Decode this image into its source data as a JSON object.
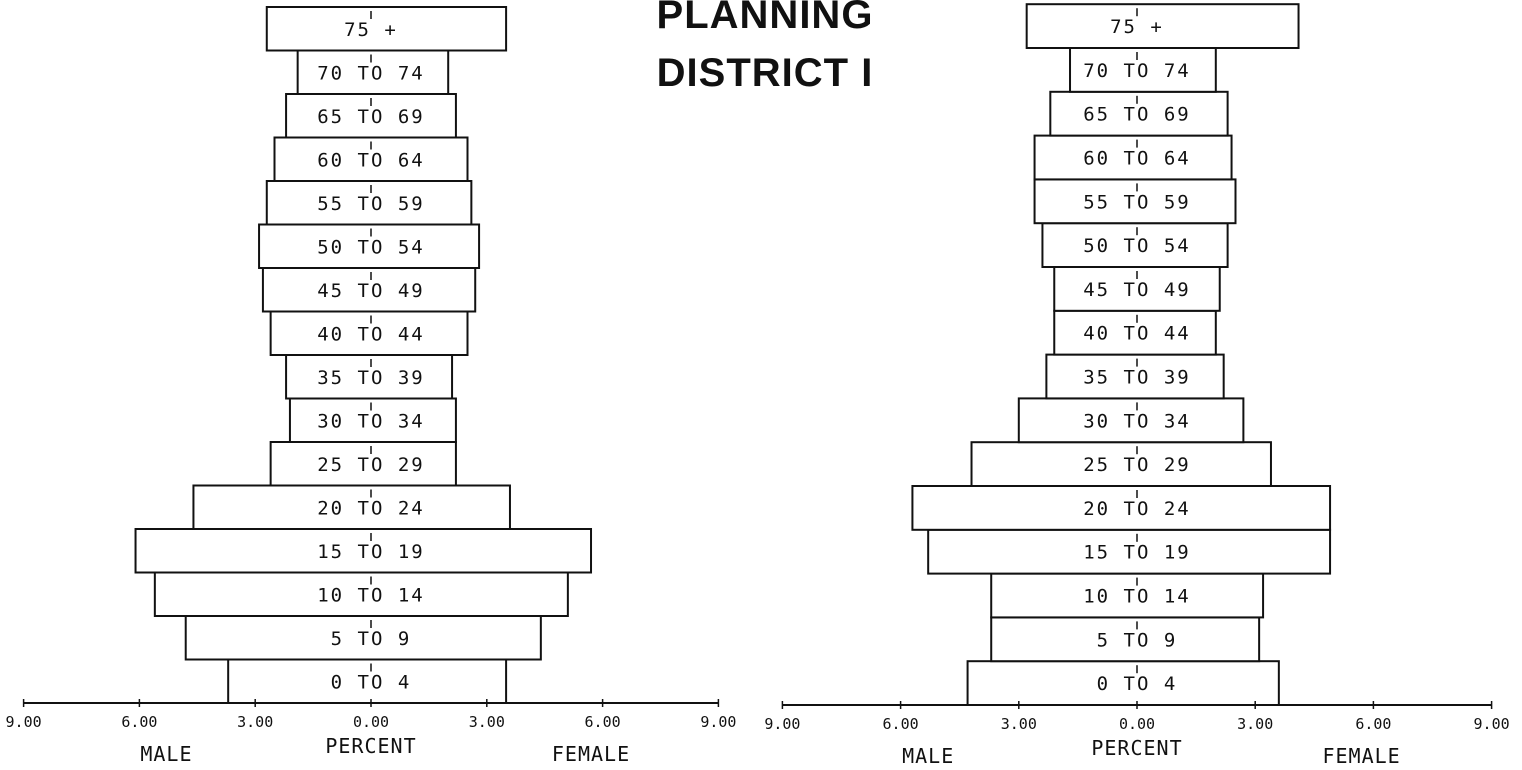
{
  "title": {
    "line1": "PLANNING",
    "line2": "DISTRICT I"
  },
  "colors": {
    "ink": "#111111",
    "background": "#ffffff"
  },
  "chart_data": [
    {
      "type": "bar",
      "orientation": "horizontal",
      "subtype": "population-pyramid",
      "categories": [
        "0 TO 4",
        "5 TO 9",
        "10 TO 14",
        "15 TO 19",
        "20 TO 24",
        "25 TO 29",
        "30 TO 34",
        "35 TO 39",
        "40 TO 44",
        "45 TO 49",
        "50 TO 54",
        "55 TO 59",
        "60 TO 64",
        "65 TO 69",
        "70 TO 74",
        "75 +"
      ],
      "series": [
        {
          "name": "MALE",
          "values": [
            3.7,
            4.8,
            5.6,
            6.1,
            4.6,
            2.6,
            2.1,
            2.2,
            2.6,
            2.8,
            2.9,
            2.7,
            2.5,
            2.2,
            1.9,
            2.7
          ]
        },
        {
          "name": "FEMALE",
          "values": [
            3.5,
            4.4,
            5.1,
            5.7,
            3.6,
            2.2,
            2.2,
            2.1,
            2.5,
            2.7,
            2.8,
            2.6,
            2.5,
            2.2,
            2.0,
            3.5
          ]
        }
      ],
      "xlabel": "PERCENT",
      "left_label": "MALE",
      "right_label": "FEMALE",
      "xlim": [
        -9,
        9
      ],
      "ticks": [
        "9.00",
        "6.00",
        "3.00",
        "0.00",
        "3.00",
        "6.00",
        "9.00"
      ]
    },
    {
      "type": "bar",
      "orientation": "horizontal",
      "subtype": "population-pyramid",
      "categories": [
        "0 TO 4",
        "5 TO 9",
        "10 TO 14",
        "15 TO 19",
        "20 TO 24",
        "25 TO 29",
        "30 TO 34",
        "35 TO 39",
        "40 TO 44",
        "45 TO 49",
        "50 TO 54",
        "55 TO 59",
        "60 TO 64",
        "65 TO 69",
        "70 TO 74",
        "75 +"
      ],
      "series": [
        {
          "name": "MALE",
          "values": [
            4.3,
            3.7,
            3.7,
            5.3,
            5.7,
            4.2,
            3.0,
            2.3,
            2.1,
            2.1,
            2.4,
            2.6,
            2.6,
            2.2,
            1.7,
            2.8
          ]
        },
        {
          "name": "FEMALE",
          "values": [
            3.6,
            3.1,
            3.2,
            4.9,
            4.9,
            3.4,
            2.7,
            2.2,
            2.0,
            2.1,
            2.3,
            2.5,
            2.4,
            2.3,
            2.0,
            4.1
          ]
        }
      ],
      "xlabel": "PERCENT",
      "left_label": "MALE",
      "right_label": "FEMALE",
      "xlim": [
        -9,
        9
      ],
      "ticks": [
        "9.00",
        "6.00",
        "3.00",
        "0.00",
        "3.00",
        "6.00",
        "9.00"
      ]
    }
  ]
}
